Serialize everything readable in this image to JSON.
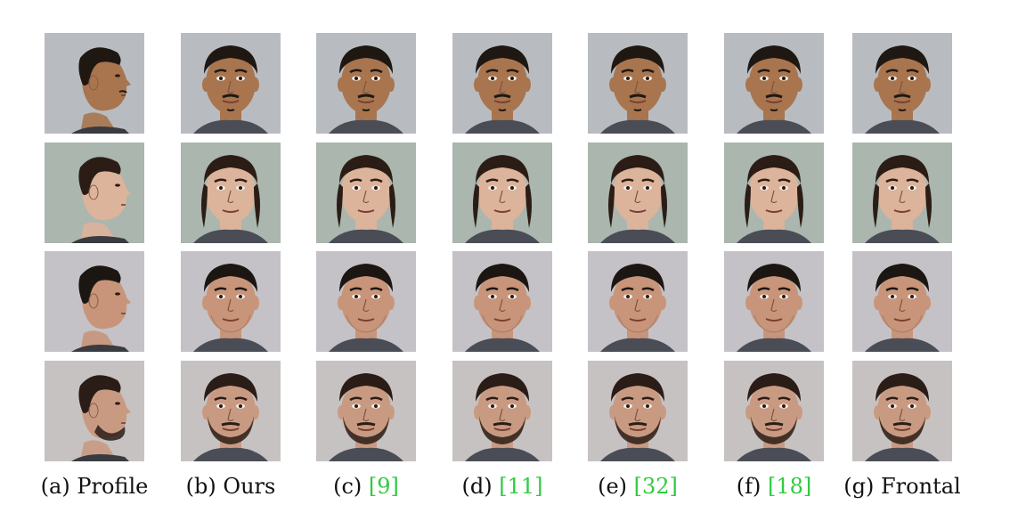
{
  "figure": {
    "columns": [
      {
        "letter": "(a)",
        "text": "Profile",
        "ref": "",
        "view": "profile"
      },
      {
        "letter": "(b)",
        "text": "Ours",
        "ref": "",
        "view": "frontal"
      },
      {
        "letter": "(c)",
        "text": "",
        "ref": "9",
        "view": "frontal"
      },
      {
        "letter": "(d)",
        "text": "",
        "ref": "11",
        "view": "frontal"
      },
      {
        "letter": "(e)",
        "text": "",
        "ref": "32",
        "view": "frontal"
      },
      {
        "letter": "(f)",
        "text": "",
        "ref": "18",
        "view": "frontal"
      },
      {
        "letter": "(g)",
        "text": "Frontal",
        "ref": "",
        "view": "frontal"
      }
    ],
    "rows": [
      {
        "subject": "man with short dark hair and mustache",
        "skin": "#a8754f",
        "hair": "#1f1712",
        "facial_hair": "mustache",
        "bg": "#b8bcc0"
      },
      {
        "subject": "woman with dark hair",
        "skin": "#dcb39b",
        "hair": "#2b1d15",
        "facial_hair": "none",
        "bg": "#aab6ae"
      },
      {
        "subject": "man with short dark hair",
        "skin": "#c8957a",
        "hair": "#1c1613",
        "facial_hair": "stubble",
        "bg": "#c4c2c6"
      },
      {
        "subject": "man with curly hair and beard",
        "skin": "#c99a82",
        "hair": "#2a1d17",
        "facial_hair": "beard",
        "bg": "#c7c2c2"
      }
    ],
    "ref_color": "#2ecc40"
  }
}
